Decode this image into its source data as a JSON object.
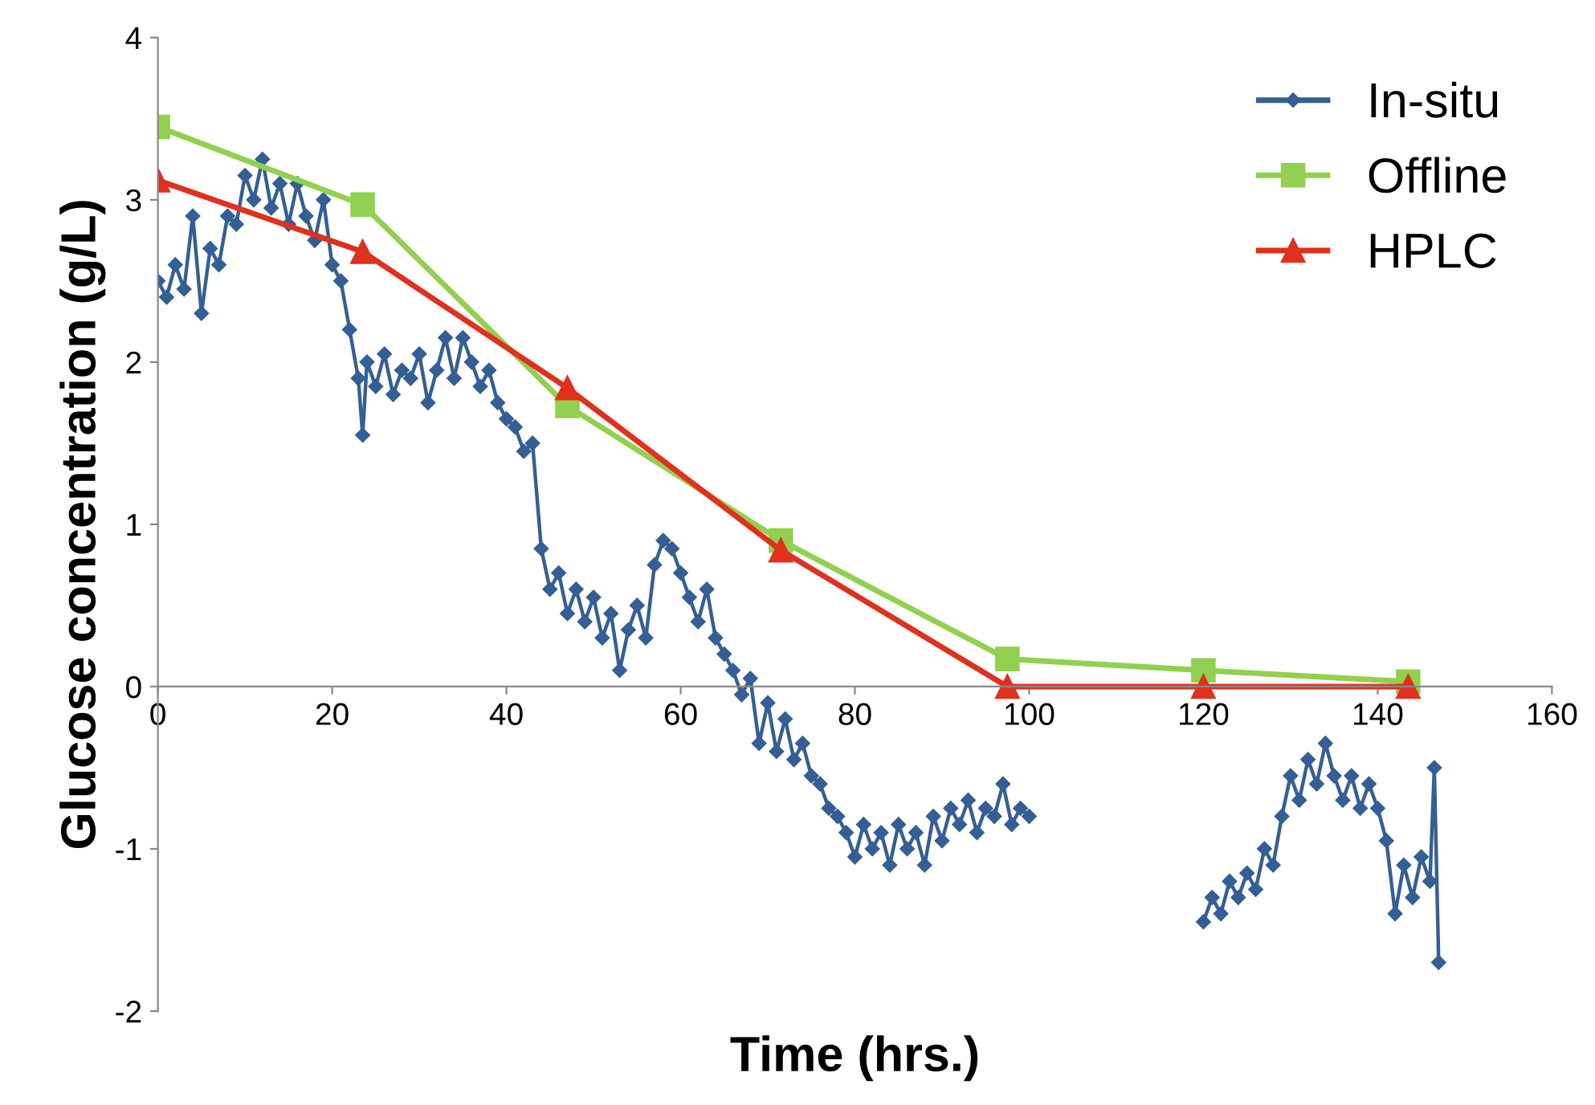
{
  "chart_data": {
    "type": "line",
    "xlabel": "Time (hrs.)",
    "ylabel": "Glucose concentration (g/L)",
    "xlim": [
      0,
      160
    ],
    "xticks": [
      0,
      20,
      40,
      60,
      80,
      100,
      120,
      140,
      160
    ],
    "ylim": [
      -2,
      4
    ],
    "yticks": [
      -2,
      -1,
      0,
      1,
      2,
      3,
      4
    ],
    "grid": false,
    "legend": "top right",
    "series": [
      {
        "name": "In-situ",
        "color": "#355f94",
        "marker": "diamond",
        "x": [
          0,
          1,
          2,
          3,
          4,
          5,
          6,
          7,
          8,
          9,
          10,
          11,
          12,
          13,
          14,
          15,
          16,
          17,
          18,
          19,
          20,
          21,
          22,
          23,
          23.5,
          24,
          25,
          26,
          27,
          28,
          29,
          30,
          31,
          32,
          33,
          34,
          35,
          36,
          37,
          38,
          39,
          40,
          41,
          42,
          43,
          44,
          45,
          46,
          47,
          48,
          49,
          50,
          51,
          52,
          53,
          54,
          55,
          56,
          57,
          58,
          59,
          60,
          61,
          62,
          63,
          64,
          65,
          66,
          67,
          68,
          69,
          70,
          71,
          72,
          73,
          74,
          75,
          76,
          77,
          78,
          79,
          80,
          81,
          82,
          83,
          84,
          85,
          86,
          87,
          88,
          89,
          90,
          91,
          92,
          93,
          94,
          95,
          96,
          97,
          98,
          99,
          100,
          110,
          120,
          121,
          122,
          123,
          124,
          125,
          126,
          127,
          128,
          129,
          130,
          131,
          132,
          133,
          134,
          135,
          136,
          137,
          138,
          139,
          140,
          141,
          142,
          143,
          144,
          145,
          146,
          146.5,
          147
        ],
        "values": [
          2.5,
          2.4,
          2.6,
          2.45,
          2.9,
          2.3,
          2.7,
          2.6,
          2.9,
          2.85,
          3.15,
          3.0,
          3.25,
          2.95,
          3.1,
          2.85,
          3.1,
          2.9,
          2.75,
          3.0,
          2.6,
          2.5,
          2.2,
          1.9,
          1.55,
          2.0,
          1.85,
          2.05,
          1.8,
          1.95,
          1.9,
          2.05,
          1.75,
          1.95,
          2.15,
          1.9,
          2.15,
          2.0,
          1.85,
          1.95,
          1.75,
          1.65,
          1.6,
          1.45,
          1.5,
          0.85,
          0.6,
          0.7,
          0.45,
          0.6,
          0.4,
          0.55,
          0.3,
          0.45,
          0.1,
          0.35,
          0.5,
          0.3,
          0.75,
          0.9,
          0.85,
          0.7,
          0.55,
          0.4,
          0.6,
          0.3,
          0.2,
          0.1,
          -0.05,
          0.05,
          -0.35,
          -0.1,
          -0.4,
          -0.2,
          -0.45,
          -0.35,
          -0.55,
          -0.6,
          -0.75,
          -0.8,
          -0.9,
          -1.05,
          -0.85,
          -1.0,
          -0.9,
          -1.1,
          -0.85,
          -1.0,
          -0.9,
          -1.1,
          -0.8,
          -0.95,
          -0.75,
          -0.85,
          -0.7,
          -0.9,
          -0.75,
          -0.8,
          -0.6,
          -0.85,
          -0.75,
          -0.8,
          null,
          -1.45,
          -1.3,
          -1.4,
          -1.2,
          -1.3,
          -1.15,
          -1.25,
          -1.0,
          -1.1,
          -0.8,
          -0.55,
          -0.7,
          -0.45,
          -0.6,
          -0.35,
          -0.55,
          -0.7,
          -0.55,
          -0.75,
          -0.6,
          -0.75,
          -0.95,
          -1.4,
          -1.1,
          -1.3,
          -1.05,
          -1.2,
          -0.5,
          -1.7
        ]
      },
      {
        "name": "Offline",
        "color": "#92d050",
        "marker": "square",
        "x": [
          0,
          23.5,
          47,
          71.5,
          97.5,
          120,
          143.5
        ],
        "values": [
          3.45,
          2.97,
          1.73,
          0.9,
          0.17,
          0.1,
          0.03
        ]
      },
      {
        "name": "HPLC",
        "color": "#e0301e",
        "marker": "triangle",
        "x": [
          0,
          23.5,
          47,
          71.5,
          97.5,
          120,
          143.5
        ],
        "values": [
          3.12,
          2.68,
          1.84,
          0.84,
          0.0,
          0.0,
          0.0
        ]
      }
    ]
  }
}
